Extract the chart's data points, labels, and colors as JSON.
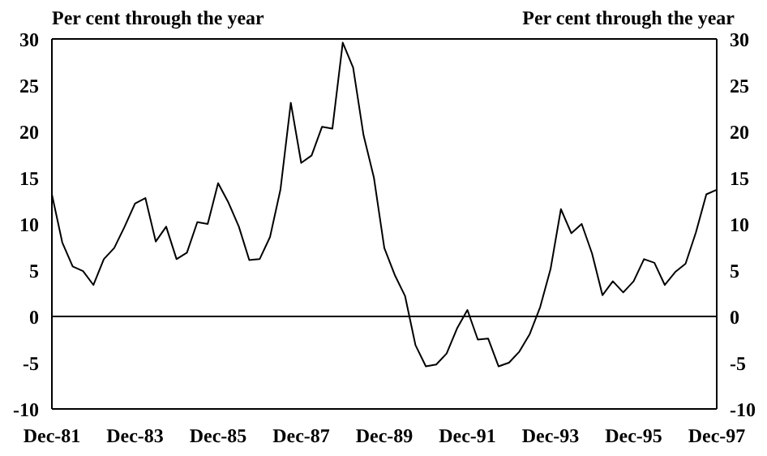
{
  "chart_data": {
    "type": "line",
    "ylabel": "Per cent through the year",
    "y2label": "Per cent through the year",
    "categories": [
      "Dec-81",
      null,
      null,
      null,
      null,
      null,
      null,
      null,
      "Dec-83",
      null,
      null,
      null,
      null,
      null,
      null,
      null,
      "Dec-85",
      null,
      null,
      null,
      null,
      null,
      null,
      null,
      "Dec-87",
      null,
      null,
      null,
      null,
      null,
      null,
      null,
      "Dec-89",
      null,
      null,
      null,
      null,
      null,
      null,
      null,
      "Dec-91",
      null,
      null,
      null,
      null,
      null,
      null,
      null,
      "Dec-93",
      null,
      null,
      null,
      null,
      null,
      null,
      null,
      "Dec-95",
      null,
      null,
      null,
      null,
      null,
      null,
      null,
      "Dec-97"
    ],
    "series": [
      {
        "color": "#000000",
        "values": [
          13.2,
          8.0,
          5.4,
          4.9,
          3.4,
          6.2,
          7.4,
          9.7,
          12.2,
          12.8,
          8.1,
          9.7,
          6.2,
          6.9,
          10.2,
          10.0,
          14.4,
          12.3,
          9.7,
          6.1,
          6.2,
          8.6,
          13.7,
          23.1,
          16.6,
          17.4,
          20.5,
          20.3,
          29.6,
          26.9,
          19.6,
          15.0,
          7.4,
          4.5,
          2.2,
          -3.1,
          -5.4,
          -5.2,
          -4.0,
          -1.3,
          0.7,
          -2.5,
          -2.4,
          -5.4,
          -5.0,
          -3.8,
          -1.9,
          1.0,
          5.1,
          11.6,
          9.0,
          10.0,
          6.8,
          2.3,
          3.8,
          2.6,
          3.8,
          6.2,
          5.8,
          3.4,
          4.8,
          5.7,
          9.1,
          13.2,
          13.7
        ]
      }
    ],
    "ylim": [
      -10,
      30
    ],
    "yticks": [
      -10,
      -5,
      0,
      5,
      10,
      15,
      20,
      25,
      30
    ],
    "y2lim": [
      -10,
      30
    ],
    "y2ticks": [
      -10,
      -5,
      0,
      5,
      10,
      15,
      20,
      25,
      30
    ],
    "ref_lines": [
      {
        "axis": "y",
        "value": 0
      }
    ],
    "grid": false,
    "marker": "none",
    "line_style": "solid"
  }
}
